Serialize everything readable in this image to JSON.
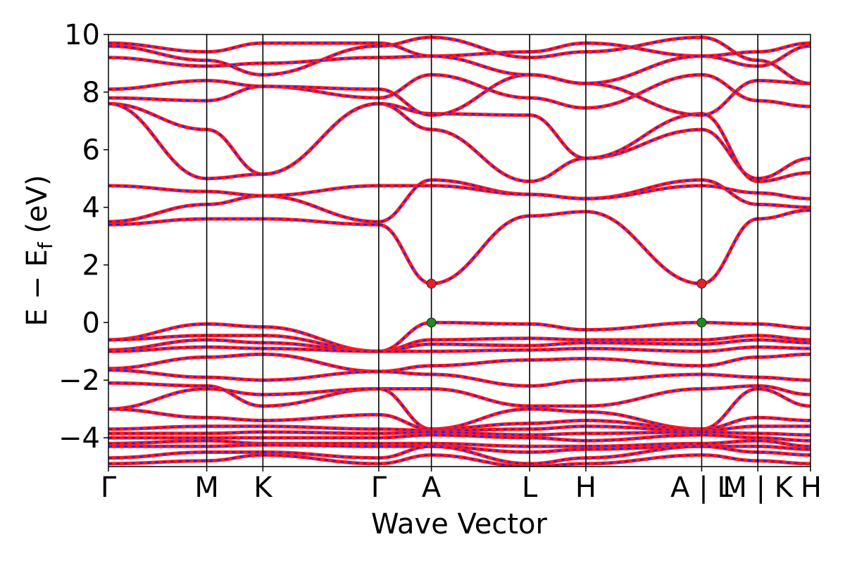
{
  "chart_data": {
    "type": "line",
    "title": "",
    "xlabel": "Wave Vector",
    "ylabel": "E − E_f (eV)",
    "ylabel_main": "E − E",
    "ylabel_sub": "f",
    "ylabel_unit": " (eV)",
    "ylim": [
      -5,
      10
    ],
    "yticks": [
      10,
      8,
      6,
      4,
      2,
      0,
      -2,
      -4
    ],
    "ytick_labels": [
      "10",
      "8",
      "6",
      "4",
      "2",
      "0",
      "−2",
      "−4"
    ],
    "xlim": [
      0,
      1
    ],
    "kpoints": [
      {
        "label": "Γ",
        "x": 0.0
      },
      {
        "label": "M",
        "x": 0.14
      },
      {
        "label": "K",
        "x": 0.22
      },
      {
        "label": "Γ",
        "x": 0.385
      },
      {
        "label": "A",
        "x": 0.46
      },
      {
        "label": "L",
        "x": 0.6
      },
      {
        "label": "H",
        "x": 0.68
      },
      {
        "label": "A | L",
        "x": 0.845
      },
      {
        "label": "M | K",
        "x": 0.925
      },
      {
        "label": "H",
        "x": 1.0
      }
    ],
    "series_style": {
      "primary_color": "#ff1a1a",
      "overlay_color": "#1f1fff",
      "overlay_style": "dashed"
    },
    "markers": [
      {
        "name": "CBM",
        "x": 0.46,
        "y": 1.35,
        "color": "#e8202a"
      },
      {
        "name": "CBM",
        "x": 0.845,
        "y": 1.35,
        "color": "#e8202a"
      },
      {
        "name": "VBM",
        "x": 0.46,
        "y": 0.0,
        "color": "#1f8a1f"
      },
      {
        "name": "VBM",
        "x": 0.845,
        "y": 0.0,
        "color": "#1f8a1f"
      }
    ],
    "bands": [
      {
        "x": [
          0,
          0.14,
          0.22,
          0.385,
          0.46,
          0.6,
          0.68,
          0.845,
          0.925,
          1.0
        ],
        "y": [
          3.4,
          3.6,
          3.6,
          3.4,
          1.35,
          3.7,
          3.85,
          1.35,
          3.6,
          3.9
        ]
      },
      {
        "x": [
          0,
          0.14,
          0.22,
          0.385,
          0.46,
          0.6,
          0.68,
          0.845,
          0.925,
          1.0
        ],
        "y": [
          3.5,
          4.1,
          4.4,
          3.5,
          4.95,
          4.45,
          4.3,
          4.95,
          4.1,
          4.0
        ]
      },
      {
        "x": [
          0,
          0.14,
          0.22,
          0.385,
          0.46,
          0.6,
          0.68,
          0.845,
          0.925,
          1.0
        ],
        "y": [
          4.75,
          4.55,
          4.4,
          4.75,
          4.75,
          4.45,
          4.3,
          4.75,
          4.5,
          4.3
        ]
      },
      {
        "x": [
          0,
          0.14,
          0.22,
          0.385,
          0.46,
          0.6,
          0.68,
          0.845,
          0.925,
          1.0
        ],
        "y": [
          7.6,
          6.7,
          5.15,
          7.6,
          6.7,
          4.9,
          5.7,
          6.7,
          5.0,
          5.7
        ]
      },
      {
        "x": [
          0,
          0.14,
          0.22,
          0.385,
          0.46,
          0.6,
          0.68,
          0.845,
          0.925,
          1.0
        ],
        "y": [
          7.6,
          5.0,
          5.15,
          7.6,
          7.25,
          7.2,
          5.7,
          7.25,
          4.9,
          5.2
        ]
      },
      {
        "x": [
          0,
          0.14,
          0.22,
          0.385,
          0.46,
          0.6,
          0.68,
          0.845,
          0.925,
          1.0
        ],
        "y": [
          7.8,
          7.7,
          8.2,
          7.8,
          8.6,
          7.8,
          7.45,
          8.6,
          7.7,
          7.5
        ]
      },
      {
        "x": [
          0,
          0.14,
          0.22,
          0.385,
          0.46,
          0.6,
          0.68,
          0.845,
          0.925,
          1.0
        ],
        "y": [
          8.1,
          8.4,
          8.2,
          8.1,
          7.2,
          8.6,
          8.3,
          7.2,
          8.4,
          8.3
        ]
      },
      {
        "x": [
          0,
          0.14,
          0.22,
          0.385,
          0.46,
          0.6,
          0.68,
          0.845,
          0.925,
          1.0
        ],
        "y": [
          9.2,
          8.9,
          9.0,
          9.2,
          9.25,
          9.4,
          9.7,
          9.25,
          8.9,
          9.6
        ]
      },
      {
        "x": [
          0,
          0.14,
          0.22,
          0.385,
          0.46,
          0.6,
          0.68,
          0.845,
          0.925,
          1.0
        ],
        "y": [
          9.6,
          9.1,
          8.6,
          9.6,
          9.9,
          9.2,
          9.4,
          9.9,
          9.1,
          8.3
        ]
      },
      {
        "x": [
          0,
          0.14,
          0.22,
          0.385,
          0.46,
          0.6,
          0.68,
          0.845,
          0.925,
          1.0
        ],
        "y": [
          9.7,
          9.4,
          9.7,
          9.7,
          9.25,
          8.6,
          8.3,
          9.25,
          9.4,
          9.7
        ]
      },
      {
        "x": [
          0,
          0.14,
          0.22,
          0.385,
          0.46,
          0.6,
          0.68,
          0.845,
          0.925,
          1.0
        ],
        "y": [
          -0.6,
          -0.05,
          -0.15,
          -1.0,
          0.0,
          -0.05,
          -0.25,
          0.0,
          -0.05,
          -0.2
        ]
      },
      {
        "x": [
          0,
          0.14,
          0.22,
          0.385,
          0.46,
          0.6,
          0.68,
          0.845,
          0.925,
          1.0
        ],
        "y": [
          -0.6,
          -0.45,
          -0.45,
          -1.0,
          -0.6,
          -0.55,
          -0.6,
          -0.6,
          -0.45,
          -0.6
        ]
      },
      {
        "x": [
          0,
          0.14,
          0.22,
          0.385,
          0.46,
          0.6,
          0.68,
          0.845,
          0.925,
          1.0
        ],
        "y": [
          -0.95,
          -0.6,
          -0.7,
          -1.0,
          -0.75,
          -0.8,
          -0.7,
          -0.75,
          -0.6,
          -0.7
        ]
      },
      {
        "x": [
          0,
          0.14,
          0.22,
          0.385,
          0.46,
          0.6,
          0.68,
          0.845,
          0.925,
          1.0
        ],
        "y": [
          -1.0,
          -0.85,
          -0.9,
          -1.0,
          -1.0,
          -0.95,
          -0.9,
          -1.0,
          -0.85,
          -0.9
        ]
      },
      {
        "x": [
          0,
          0.14,
          0.22,
          0.385,
          0.46,
          0.6,
          0.68,
          0.845,
          0.925,
          1.0
        ],
        "y": [
          -1.6,
          -1.2,
          -1.1,
          -1.7,
          -1.5,
          -1.3,
          -1.25,
          -1.5,
          -1.2,
          -1.1
        ]
      },
      {
        "x": [
          0,
          0.14,
          0.22,
          0.385,
          0.46,
          0.6,
          0.68,
          0.845,
          0.925,
          1.0
        ],
        "y": [
          -1.65,
          -1.9,
          -2.0,
          -1.7,
          -1.8,
          -2.2,
          -2.0,
          -1.8,
          -1.9,
          -2.0
        ]
      },
      {
        "x": [
          0,
          0.14,
          0.22,
          0.385,
          0.46,
          0.6,
          0.68,
          0.845,
          0.925,
          1.0
        ],
        "y": [
          -2.1,
          -2.2,
          -2.9,
          -2.3,
          -2.3,
          -2.9,
          -2.9,
          -2.3,
          -2.2,
          -2.5
        ]
      },
      {
        "x": [
          0,
          0.14,
          0.22,
          0.385,
          0.46,
          0.6,
          0.68,
          0.845,
          0.925,
          1.0
        ],
        "y": [
          -3.0,
          -2.3,
          -2.5,
          -2.3,
          -3.7,
          -3.0,
          -3.1,
          -3.7,
          -2.3,
          -2.9
        ]
      },
      {
        "x": [
          0,
          0.14,
          0.22,
          0.385,
          0.46,
          0.6,
          0.68,
          0.845,
          0.925,
          1.0
        ],
        "y": [
          -3.0,
          -3.3,
          -3.4,
          -3.2,
          -3.7,
          -3.5,
          -3.4,
          -3.7,
          -3.3,
          -3.4
        ]
      },
      {
        "x": [
          0,
          0.14,
          0.22,
          0.385,
          0.46,
          0.6,
          0.68,
          0.845,
          0.925,
          1.0
        ],
        "y": [
          -3.7,
          -3.6,
          -3.6,
          -3.7,
          -3.75,
          -3.7,
          -3.6,
          -3.75,
          -3.6,
          -3.6
        ]
      },
      {
        "x": [
          0,
          0.14,
          0.22,
          0.385,
          0.46,
          0.6,
          0.68,
          0.845,
          0.925,
          1.0
        ],
        "y": [
          -3.85,
          -3.85,
          -3.8,
          -3.85,
          -3.8,
          -3.9,
          -3.85,
          -3.8,
          -3.85,
          -3.9
        ]
      },
      {
        "x": [
          0,
          0.14,
          0.22,
          0.385,
          0.46,
          0.6,
          0.68,
          0.845,
          0.925,
          1.0
        ],
        "y": [
          -4.0,
          -4.0,
          -4.0,
          -4.0,
          -3.9,
          -4.0,
          -4.1,
          -3.9,
          -4.0,
          -4.1
        ]
      },
      {
        "x": [
          0,
          0.14,
          0.22,
          0.385,
          0.46,
          0.6,
          0.68,
          0.845,
          0.925,
          1.0
        ],
        "y": [
          -4.2,
          -4.1,
          -4.2,
          -4.2,
          -4.2,
          -4.3,
          -4.3,
          -4.2,
          -4.1,
          -4.3
        ]
      },
      {
        "x": [
          0,
          0.14,
          0.22,
          0.385,
          0.46,
          0.6,
          0.68,
          0.845,
          0.925,
          1.0
        ],
        "y": [
          -4.3,
          -4.3,
          -4.25,
          -4.3,
          -4.3,
          -4.5,
          -4.4,
          -4.3,
          -4.3,
          -4.4
        ]
      },
      {
        "x": [
          0,
          0.14,
          0.22,
          0.385,
          0.46,
          0.6,
          0.68,
          0.845,
          0.925,
          1.0
        ],
        "y": [
          -4.7,
          -4.5,
          -4.5,
          -4.7,
          -4.3,
          -4.9,
          -4.7,
          -4.3,
          -4.5,
          -4.6
        ]
      },
      {
        "x": [
          0,
          0.14,
          0.22,
          0.385,
          0.46,
          0.6,
          0.68,
          0.845,
          0.925,
          1.0
        ],
        "y": [
          -4.9,
          -4.8,
          -4.6,
          -4.9,
          -4.6,
          -5.0,
          -4.9,
          -4.6,
          -4.8,
          -4.9
        ]
      }
    ]
  }
}
